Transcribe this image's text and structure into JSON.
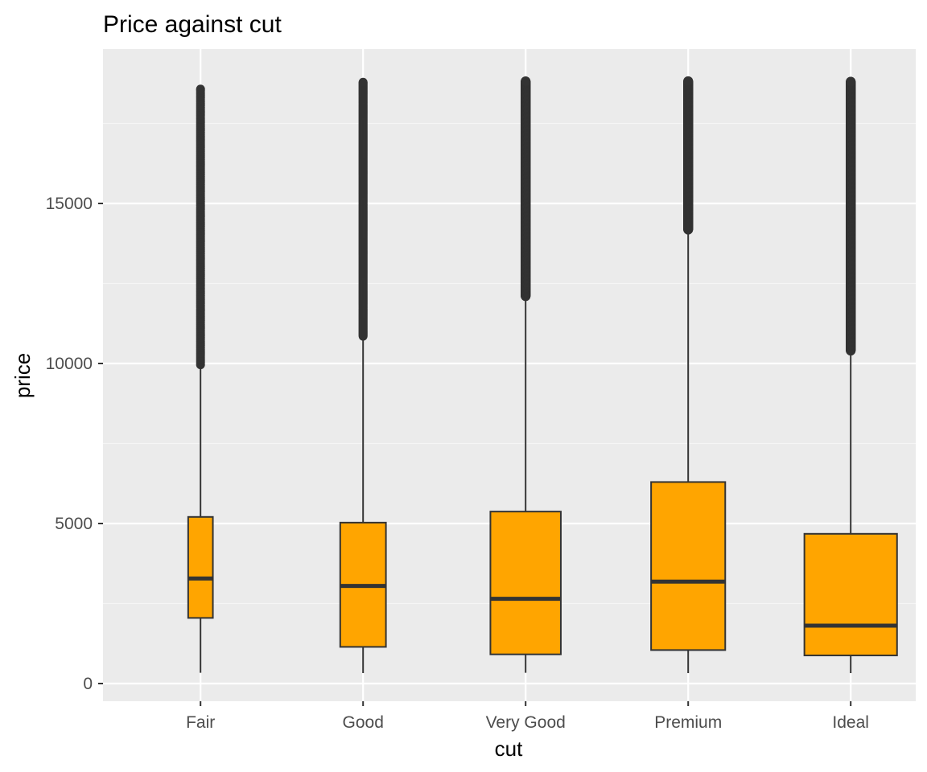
{
  "chart_data": {
    "type": "boxplot",
    "title": "Price against cut",
    "xlabel": "cut",
    "ylabel": "price",
    "ylim": [
      -600,
      19500
    ],
    "yticks": [
      0,
      5000,
      10000,
      15000
    ],
    "ytick_labels": [
      "0",
      "5000",
      "10000",
      "15000"
    ],
    "categories": [
      "Fair",
      "Good",
      "Very Good",
      "Premium",
      "Ideal"
    ],
    "box_width_ratio": [
      0.2,
      0.37,
      0.57,
      0.6,
      0.75
    ],
    "boxes": [
      {
        "category": "Fair",
        "min": 337,
        "q1": 2050,
        "median": 3282,
        "q3": 5206,
        "whisker_high": 9900,
        "outlier_min": 9960,
        "outlier_max": 18574,
        "outlier_density": "sparse"
      },
      {
        "category": "Good",
        "min": 327,
        "q1": 1145,
        "median": 3050,
        "q3": 5028,
        "whisker_high": 10800,
        "outlier_min": 10850,
        "outlier_max": 18788,
        "outlier_density": "medium"
      },
      {
        "category": "Very Good",
        "min": 336,
        "q1": 912,
        "median": 2648,
        "q3": 5373,
        "whisker_high": 12050,
        "outlier_min": 12100,
        "outlier_max": 18818,
        "outlier_density": "dense"
      },
      {
        "category": "Premium",
        "min": 326,
        "q1": 1046,
        "median": 3185,
        "q3": 6296,
        "whisker_high": 14120,
        "outlier_min": 14180,
        "outlier_max": 18823,
        "outlier_density": "dense"
      },
      {
        "category": "Ideal",
        "min": 326,
        "q1": 878,
        "median": 1810,
        "q3": 4678,
        "whisker_high": 10340,
        "outlier_min": 10400,
        "outlier_max": 18806,
        "outlier_density": "dense"
      }
    ],
    "colors": {
      "box_fill": "#FFA500",
      "box_outline": "#333333",
      "panel_bg": "#EBEBEB",
      "grid_major": "#FFFFFF",
      "grid_minor": "#F5F5F5",
      "outlier": "#333333",
      "tick_text": "#4D4D4D",
      "title_text": "#000000"
    },
    "grid": true,
    "legend": "none"
  }
}
